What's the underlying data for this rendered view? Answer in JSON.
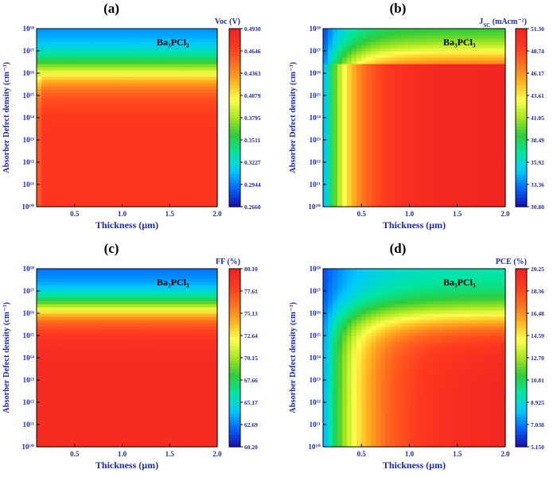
{
  "figure": {
    "colormap": [
      "#1a0dab",
      "#0064ff",
      "#00c8ff",
      "#00e6a0",
      "#2ecc3a",
      "#a8e61e",
      "#ffff4d",
      "#ffb41e",
      "#ff6e1e",
      "#ff3a1e",
      "#ee2222"
    ]
  },
  "chart_data": [
    {
      "panel": "(a)",
      "type": "heatmap",
      "material_label": "Ba₃PCl₃",
      "xlabel": "Thickness (μm)",
      "ylabel": "Absorber Defect density (cm⁻³)",
      "xlim": [
        0.1,
        2.0
      ],
      "ylim_log10": [
        10,
        18
      ],
      "x_ticks": [
        "0.5",
        "1.0",
        "1.5",
        "2.0"
      ],
      "y_ticks": [
        "10¹⁰",
        "10¹¹",
        "10¹²",
        "10¹³",
        "10¹⁴",
        "10¹⁵",
        "10¹⁶",
        "10¹⁷",
        "10¹⁸"
      ],
      "colorbar": {
        "title": "Voc (V)",
        "min": 0.266,
        "max": 0.493,
        "ticks": [
          "0.4930",
          "0.4646",
          "0.4363",
          "0.4079",
          "0.3795",
          "0.3511",
          "0.3227",
          "0.2944",
          "0.2660"
        ]
      },
      "pattern": "density_dominant"
    },
    {
      "panel": "(b)",
      "type": "heatmap",
      "material_label": "Ba₃PCl₃",
      "xlabel": "Thickness (μm)",
      "ylabel": "Absorber Defect density (cm⁻³)",
      "xlim": [
        0.1,
        2.0
      ],
      "ylim_log10": [
        10,
        18
      ],
      "x_ticks": [
        "0.5",
        "1.0",
        "1.5",
        "2.0"
      ],
      "y_ticks": [
        "10¹⁰",
        "10¹¹",
        "10¹²",
        "10¹³",
        "10¹⁴",
        "10¹⁵",
        "10¹⁶",
        "10¹⁷",
        "10¹⁸"
      ],
      "colorbar": {
        "title": "J",
        "title_sub": "SC",
        "title_tail": " (mAcm⁻²)",
        "min": 30.8,
        "max": 51.3,
        "ticks": [
          "51.30",
          "48.74",
          "46.17",
          "43.61",
          "41.05",
          "38.49",
          "35.92",
          "33.36",
          "30.80"
        ]
      },
      "pattern": "thickness_dominant"
    },
    {
      "panel": "(c)",
      "type": "heatmap",
      "material_label": "Ba₃PCl₃",
      "xlabel": "Thickness (μm)",
      "ylabel": "Absorber Defect density (cm⁻³)",
      "xlim": [
        0.1,
        2.0
      ],
      "ylim_log10": [
        10,
        18
      ],
      "x_ticks": [
        "0.5",
        "1.0",
        "1.5",
        "2.0"
      ],
      "y_ticks": [
        "10¹⁰",
        "10¹¹",
        "10¹²",
        "10¹³",
        "10¹⁴",
        "10¹⁵",
        "10¹⁶",
        "10¹⁷",
        "10¹⁸"
      ],
      "colorbar": {
        "title": "FF (%)",
        "min": 60.2,
        "max": 80.1,
        "ticks": [
          "80.10",
          "77.61",
          "75.13",
          "72.64",
          "70.15",
          "67.66",
          "65.17",
          "62.69",
          "60.20"
        ]
      },
      "pattern": "density_only"
    },
    {
      "panel": "(d)",
      "type": "heatmap",
      "material_label": "Ba₃PCl₃",
      "xlabel": "Thickness (μm)",
      "ylabel": "Absorber Defect density (cm⁻³)",
      "xlim": [
        0.1,
        2.0
      ],
      "ylim_log10": [
        10,
        18
      ],
      "x_ticks": [
        "0.5",
        "1.0",
        "1.5",
        "2.0"
      ],
      "y_ticks": [
        "10¹⁰",
        "10¹¹",
        "10¹²",
        "10¹³",
        "10¹⁴",
        "10¹⁵",
        "10¹⁶",
        "10¹⁷",
        "10¹⁸"
      ],
      "colorbar": {
        "title": "PCE (%)",
        "min": 5.15,
        "max": 20.25,
        "ticks": [
          "20.25",
          "18.36",
          "16.48",
          "14.59",
          "12.70",
          "10.81",
          "8.925",
          "7.038",
          "5.150"
        ]
      },
      "pattern": "combined"
    }
  ]
}
